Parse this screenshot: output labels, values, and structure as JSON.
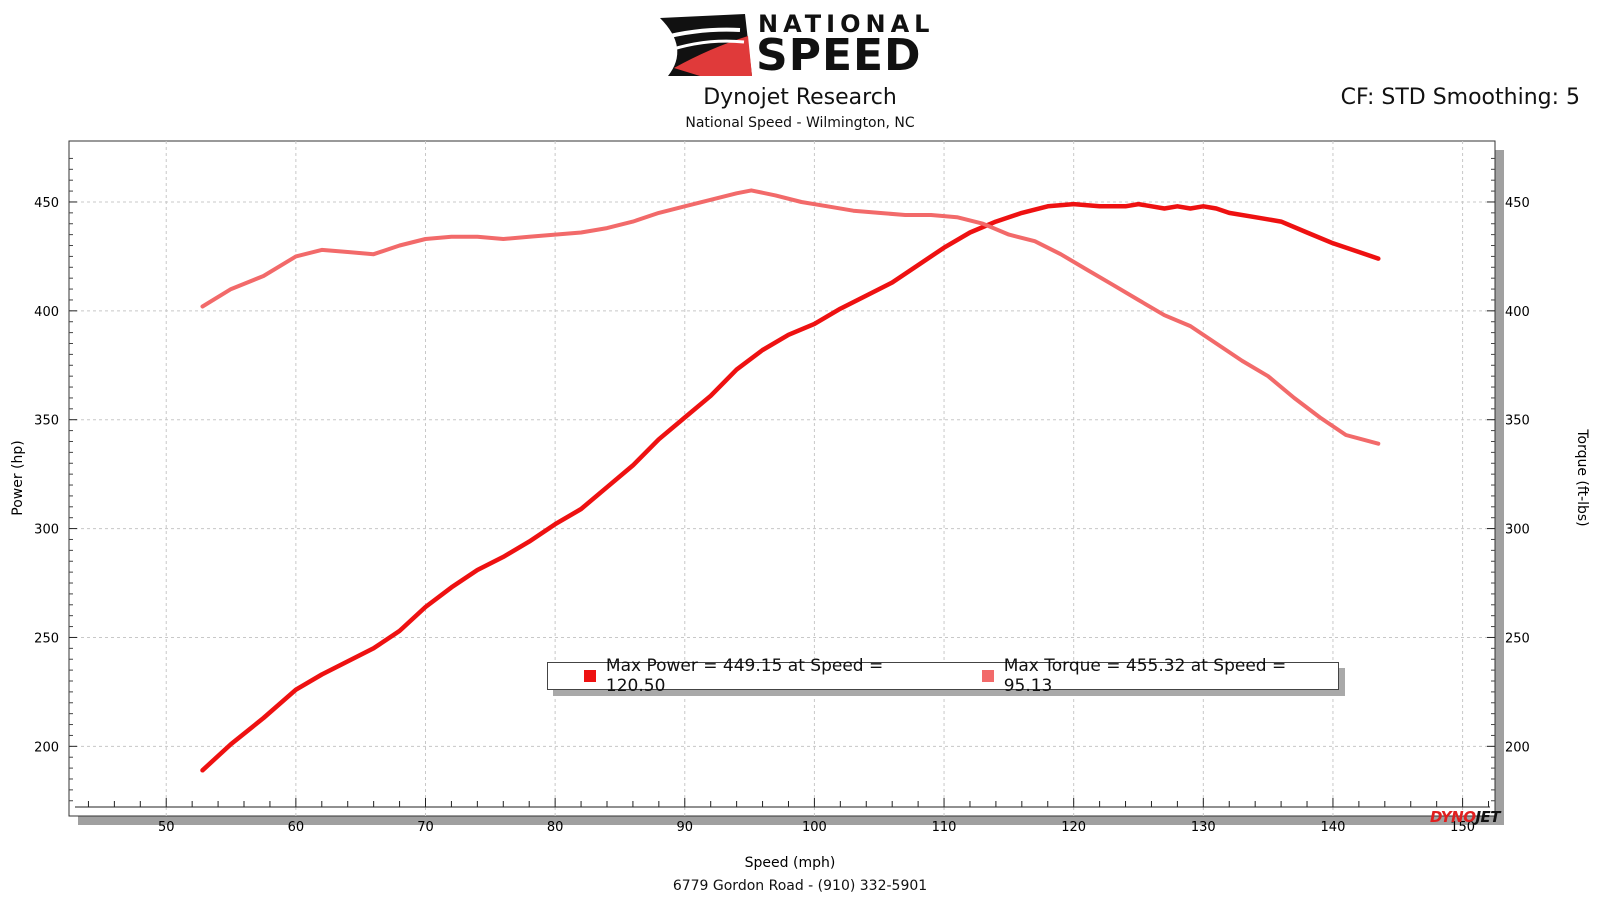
{
  "logo": {
    "line1": "NATIONAL",
    "line2": "SPEED",
    "accent": "#e03a3a"
  },
  "header": {
    "title": "Dynojet Research",
    "subtitle": "National Speed - Wilmington, NC",
    "cf": "CF: STD Smoothing: 5"
  },
  "footer": {
    "address": "6779 Gordon Road - (910) 332-5901"
  },
  "brand": {
    "part1": "DYNO",
    "part2": "JET"
  },
  "legend": {
    "power": "Max Power = 449.15 at Speed = 120.50",
    "torque": "Max Torque = 455.32 at Speed = 95.13"
  },
  "colors": {
    "power": "#ee1111",
    "torque": "#f26a6a",
    "grid": "#c8c8c8"
  },
  "chart_data": {
    "type": "line",
    "xlabel": "Speed (mph)",
    "ylabel": "Power (hp)",
    "y2label": "Torque (ft-lbs)",
    "xlim": [
      42.5,
      152.5
    ],
    "ylim": [
      168,
      478
    ],
    "xticks": [
      50,
      60,
      70,
      80,
      90,
      100,
      110,
      120,
      130,
      140,
      150
    ],
    "yticks": [
      200,
      250,
      300,
      350,
      400,
      450
    ],
    "grid": true,
    "legend_position": "bottom-center",
    "series": [
      {
        "name": "Power",
        "axis": "left",
        "color": "#ee1111",
        "x": [
          52.8,
          55,
          57.5,
          60,
          62,
          64,
          66,
          68,
          70,
          72,
          74,
          76,
          78,
          80,
          82,
          84,
          86,
          88,
          90,
          92,
          94,
          96,
          98,
          100,
          102,
          104,
          106,
          108,
          110,
          112,
          114,
          116,
          118,
          120,
          122,
          124,
          125,
          126,
          127,
          128,
          129,
          130,
          131,
          132,
          134,
          136,
          138,
          140,
          142,
          143.5
        ],
        "y": [
          189,
          201,
          213,
          226,
          233,
          239,
          245,
          253,
          264,
          273,
          281,
          287,
          294,
          302,
          309,
          319,
          329,
          341,
          351,
          361,
          373,
          382,
          389,
          394,
          401,
          407,
          413,
          421,
          429,
          436,
          441,
          445,
          448,
          449,
          448,
          448,
          449,
          448,
          447,
          448,
          447,
          448,
          447,
          445,
          443,
          441,
          436,
          431,
          427,
          424
        ]
      },
      {
        "name": "Torque",
        "axis": "right",
        "color": "#f26a6a",
        "x": [
          52.8,
          55,
          57.5,
          60,
          62,
          64,
          66,
          68,
          70,
          72,
          74,
          76,
          78,
          80,
          82,
          84,
          86,
          88,
          90,
          92,
          94,
          95.13,
          97,
          99,
          101,
          103,
          105,
          107,
          109,
          111,
          113,
          115,
          117,
          119,
          121,
          123,
          125,
          127,
          129,
          131,
          133,
          135,
          137,
          139,
          141,
          143.5
        ],
        "y": [
          402,
          410,
          416,
          425,
          428,
          427,
          426,
          430,
          433,
          434,
          434,
          433,
          434,
          435,
          436,
          438,
          441,
          445,
          448,
          451,
          454,
          455.32,
          453,
          450,
          448,
          446,
          445,
          444,
          444,
          443,
          440,
          435,
          432,
          426,
          419,
          412,
          405,
          398,
          393,
          385,
          377,
          370,
          360,
          351,
          343,
          339
        ]
      }
    ]
  }
}
